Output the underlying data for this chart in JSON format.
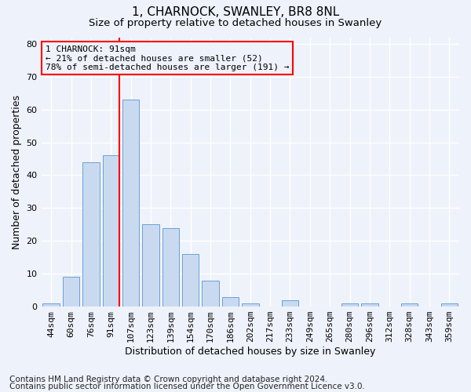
{
  "title1": "1, CHARNOCK, SWANLEY, BR8 8NL",
  "title2": "Size of property relative to detached houses in Swanley",
  "xlabel": "Distribution of detached houses by size in Swanley",
  "ylabel": "Number of detached properties",
  "categories": [
    "44sqm",
    "60sqm",
    "76sqm",
    "91sqm",
    "107sqm",
    "123sqm",
    "139sqm",
    "154sqm",
    "170sqm",
    "186sqm",
    "202sqm",
    "217sqm",
    "233sqm",
    "249sqm",
    "265sqm",
    "280sqm",
    "296sqm",
    "312sqm",
    "328sqm",
    "343sqm",
    "359sqm"
  ],
  "values": [
    1,
    9,
    44,
    46,
    63,
    25,
    24,
    16,
    8,
    3,
    1,
    0,
    2,
    0,
    0,
    1,
    1,
    0,
    1,
    0,
    1
  ],
  "bar_color": "#c9daf0",
  "bar_edge_color": "#6aa0d4",
  "red_line_index": 3,
  "ylim": [
    0,
    82
  ],
  "yticks": [
    0,
    10,
    20,
    30,
    40,
    50,
    60,
    70,
    80
  ],
  "annotation_text": "1 CHARNOCK: 91sqm\n← 21% of detached houses are smaller (52)\n78% of semi-detached houses are larger (191) →",
  "footnote1": "Contains HM Land Registry data © Crown copyright and database right 2024.",
  "footnote2": "Contains public sector information licensed under the Open Government Licence v3.0.",
  "background_color": "#eef2fa",
  "grid_color": "#ffffff",
  "title1_fontsize": 11,
  "title2_fontsize": 9.5,
  "xlabel_fontsize": 9,
  "ylabel_fontsize": 9,
  "footnote_fontsize": 7.5,
  "tick_fontsize": 8,
  "annot_fontsize": 8
}
